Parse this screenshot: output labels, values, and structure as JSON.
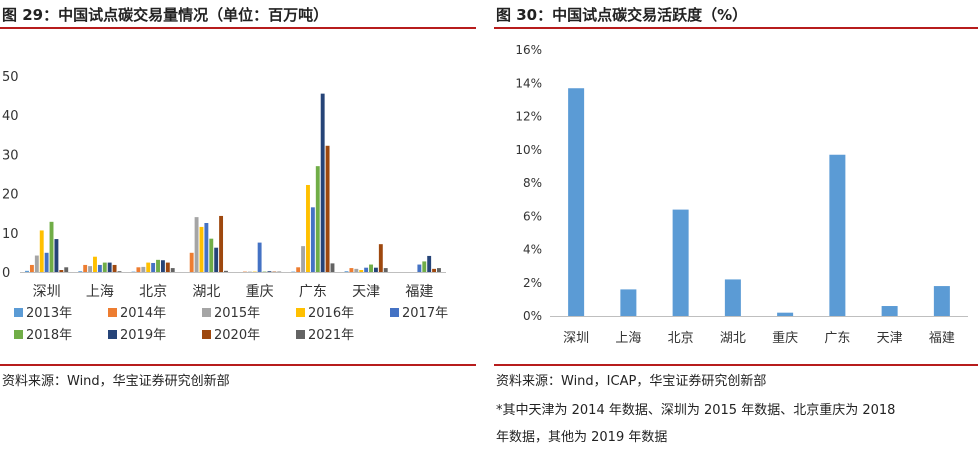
{
  "left_panel": {
    "title": "图 29：中国试点碳交易量情况（单位：百万吨）",
    "source": "资料来源：Wind，华宝证券研究创新部"
  },
  "right_panel": {
    "title": "图 30：中国试点碳交易活跃度（%）",
    "source": "资料来源：Wind，ICAP，华宝证券研究创新部",
    "note_line1": "*其中天津为 2014 年数据、深圳为 2015 年数据、北京重庆为 2018",
    "note_line2": "年数据，其他为 2019 年数据"
  },
  "chart_data": [
    {
      "type": "bar",
      "categories": [
        "深圳",
        "上海",
        "北京",
        "湖北",
        "重庆",
        "广东",
        "天津",
        "福建"
      ],
      "ylim": [
        0,
        50
      ],
      "yticks": [
        0,
        10,
        20,
        30,
        40,
        50
      ],
      "ytick_labels": [
        "0",
        "10",
        "20",
        "30",
        "40",
        "50"
      ],
      "legend_position": "bottom",
      "series": [
        {
          "name": "2013年",
          "color": "#5b9bd5",
          "values": [
            0.3,
            0.2,
            0.1,
            0,
            0,
            0.1,
            0.2,
            0
          ]
        },
        {
          "name": "2014年",
          "color": "#ed7d31",
          "values": [
            1.8,
            1.8,
            1.2,
            4.9,
            0.1,
            1.2,
            1.0,
            0
          ]
        },
        {
          "name": "2015年",
          "color": "#a5a5a5",
          "values": [
            4.2,
            1.5,
            1.3,
            14.0,
            0.1,
            6.6,
            0.8,
            0
          ]
        },
        {
          "name": "2016年",
          "color": "#ffc000",
          "values": [
            10.6,
            3.9,
            2.4,
            11.5,
            0.1,
            22.2,
            0.5,
            0
          ]
        },
        {
          "name": "2017年",
          "color": "#4472c4",
          "values": [
            4.9,
            1.8,
            2.3,
            12.5,
            7.5,
            16.5,
            1.1,
            1.9
          ]
        },
        {
          "name": "2018年",
          "color": "#70ad47",
          "values": [
            12.8,
            2.4,
            3.1,
            8.5,
            0.1,
            27.0,
            1.9,
            2.7
          ]
        },
        {
          "name": "2019年",
          "color": "#264478",
          "values": [
            8.4,
            2.4,
            3.0,
            6.2,
            0.2,
            45.5,
            1.1,
            4.1
          ]
        },
        {
          "name": "2020年",
          "color": "#9e480e",
          "values": [
            0.5,
            1.8,
            2.4,
            14.3,
            0.1,
            32.2,
            7.1,
            0.8
          ]
        },
        {
          "name": "2021年",
          "color": "#636363",
          "values": [
            1.2,
            0.2,
            1.0,
            0.3,
            0.1,
            2.2,
            1.0,
            1.0
          ]
        }
      ]
    },
    {
      "type": "bar",
      "categories": [
        "深圳",
        "上海",
        "北京",
        "湖北",
        "重庆",
        "广东",
        "天津",
        "福建"
      ],
      "ylim": [
        0,
        16
      ],
      "yticks": [
        0,
        2,
        4,
        6,
        8,
        10,
        12,
        14,
        16
      ],
      "ytick_labels": [
        "0%",
        "2%",
        "4%",
        "6%",
        "8%",
        "10%",
        "12%",
        "14%",
        "16%"
      ],
      "series": [
        {
          "color": "#5b9bd5",
          "values": [
            13.7,
            1.6,
            6.4,
            2.2,
            0.2,
            9.7,
            0.6,
            1.8
          ]
        }
      ]
    }
  ]
}
